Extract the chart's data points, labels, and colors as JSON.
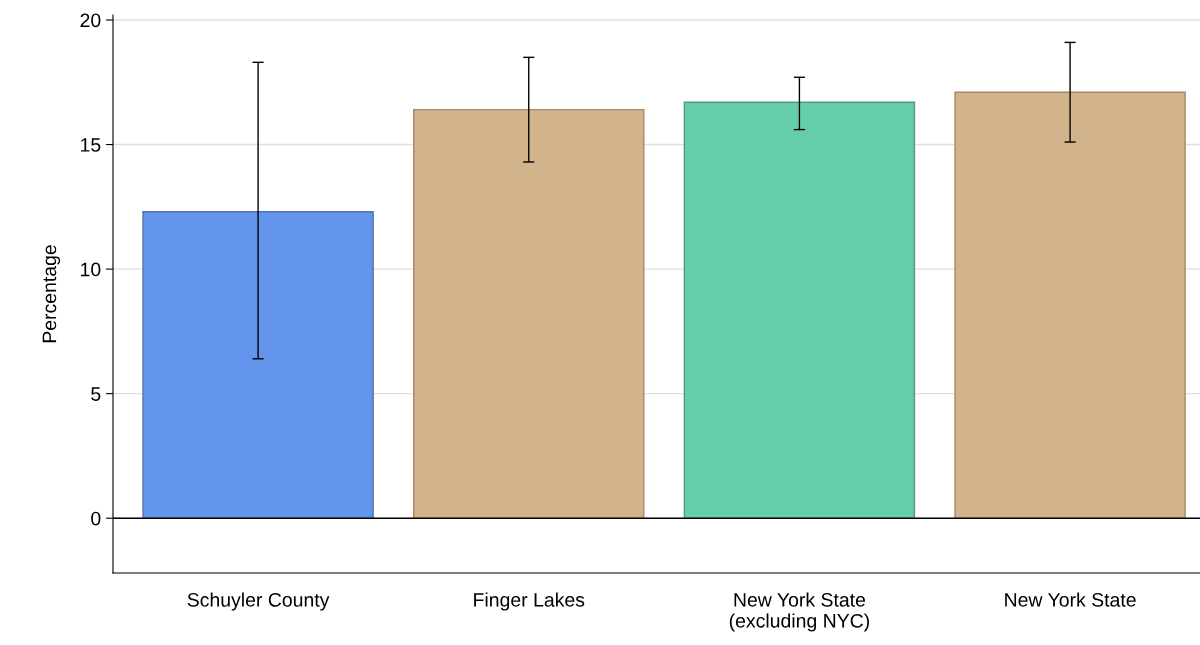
{
  "chart_data": {
    "type": "bar",
    "ylabel": "Percentage",
    "categories": [
      "Schuyler County",
      "Finger Lakes",
      "New York State\n(excluding NYC)",
      "New York State"
    ],
    "values": [
      12.3,
      16.4,
      16.7,
      17.1
    ],
    "colors": [
      "#6495ed",
      "#d2b48c",
      "#66cdaa",
      "#d2b48c"
    ],
    "errors": [
      [
        6.4,
        18.3
      ],
      [
        14.3,
        18.5
      ],
      [
        15.6,
        17.7
      ],
      [
        15.1,
        19.1
      ]
    ],
    "ylim": [
      -2.2,
      20.2
    ],
    "yticks": [
      0,
      5,
      10,
      15,
      20
    ],
    "grid": "y",
    "ref_lines": [
      {
        "axis": "y",
        "value": 0,
        "label": null,
        "color": "#000000"
      }
    ]
  }
}
